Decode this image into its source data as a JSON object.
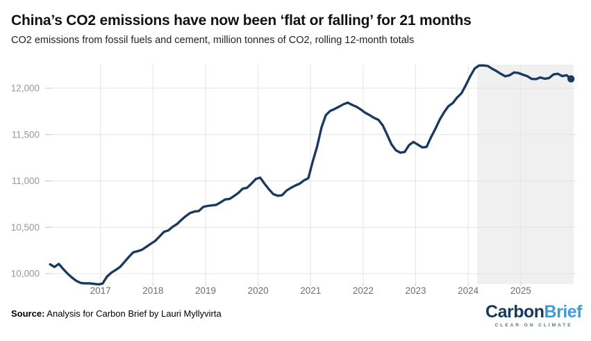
{
  "chart_data": {
    "type": "line",
    "title": "China’s CO2 emissions have now been ‘flat or falling’ for 21 months",
    "subtitle": "CO2 emissions from fossil fuels and cement, million tonnes of CO2, rolling 12-month totals",
    "xlabel": "",
    "ylabel": "",
    "grid": true,
    "legend": "none",
    "xlim": [
      2015.92,
      2026.06
    ],
    "ylim": [
      9890,
      12280
    ],
    "x_ticks": [
      {
        "v": 2017,
        "label": "2017"
      },
      {
        "v": 2018,
        "label": "2018"
      },
      {
        "v": 2019,
        "label": "2019"
      },
      {
        "v": 2020,
        "label": "2020"
      },
      {
        "v": 2021,
        "label": "2021"
      },
      {
        "v": 2022,
        "label": "2022"
      },
      {
        "v": 2023,
        "label": "2023"
      },
      {
        "v": 2024,
        "label": "2024"
      },
      {
        "v": 2025,
        "label": "2025"
      }
    ],
    "y_ticks": [
      {
        "v": 10000,
        "label": "10,000"
      },
      {
        "v": 10500,
        "label": "10,500"
      },
      {
        "v": 11000,
        "label": "11,000"
      },
      {
        "v": 11500,
        "label": "11,500"
      },
      {
        "v": 12000,
        "label": "12,000"
      }
    ],
    "line_color": "#1b3a5e",
    "end_dot": true,
    "highlight_region": {
      "start": 2024.17,
      "end": 2026.01,
      "color": "#f0f0f1"
    },
    "x_start_year": 2016.04,
    "x_step_years": 0.083333,
    "values": [
      10100,
      10072,
      10105,
      10050,
      10000,
      9958,
      9922,
      9900,
      9895,
      9895,
      9890,
      9885,
      9892,
      9968,
      10010,
      10040,
      10072,
      10125,
      10180,
      10230,
      10242,
      10258,
      10290,
      10322,
      10352,
      10400,
      10450,
      10466,
      10505,
      10535,
      10580,
      10620,
      10655,
      10670,
      10676,
      10720,
      10730,
      10736,
      10742,
      10770,
      10800,
      10806,
      10836,
      10870,
      10916,
      10926,
      10970,
      11020,
      11035,
      10970,
      10910,
      10858,
      10840,
      10846,
      10895,
      10925,
      10950,
      10970,
      11005,
      11030,
      11210,
      11370,
      11575,
      11710,
      11755,
      11776,
      11800,
      11826,
      11845,
      11820,
      11800,
      11770,
      11735,
      11710,
      11680,
      11660,
      11600,
      11500,
      11395,
      11330,
      11305,
      11312,
      11386,
      11420,
      11392,
      11362,
      11366,
      11470,
      11560,
      11660,
      11740,
      11806,
      11840,
      11900,
      11946,
      12035,
      12130,
      12212,
      12245,
      12246,
      12240,
      12210,
      12184,
      12154,
      12128,
      12140,
      12170,
      12164,
      12146,
      12130,
      12100,
      12098,
      12116,
      12102,
      12110,
      12148,
      12156,
      12130,
      12140,
      12100
    ]
  },
  "footer": {
    "source_label": "Source:",
    "source_text": " Analysis for Carbon Brief by Lauri Myllyvirta",
    "logo": {
      "part1": "Carbon",
      "part2": "Brief",
      "tagline": "CLEAR ON CLIMATE",
      "brand_navy": "#17395b",
      "brand_blue": "#3f9bd8"
    }
  }
}
